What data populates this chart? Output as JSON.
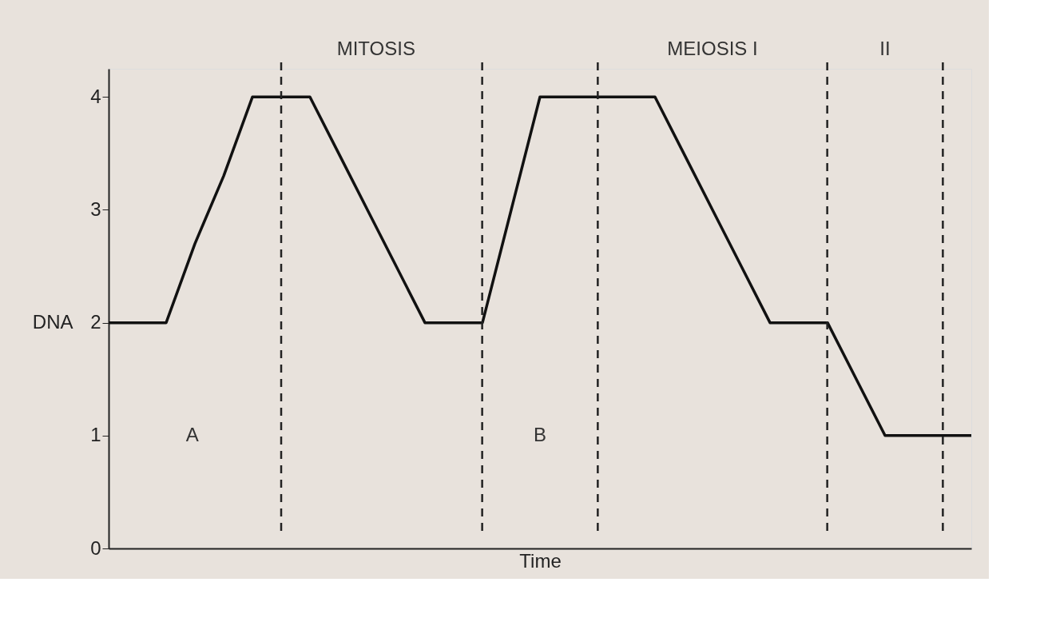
{
  "chart_data": {
    "type": "line",
    "xlabel": "Time",
    "ylabel": "DNA",
    "categories": [
      null,
      null,
      null,
      null,
      null,
      null,
      null,
      null,
      null,
      null,
      null,
      null,
      null,
      null,
      null,
      null,
      null,
      null,
      null,
      null,
      null,
      null,
      null,
      null,
      null,
      null,
      null,
      null,
      null,
      null,
      null
    ],
    "series": [
      {
        "color": "#111111",
        "values": [
          2,
          2,
          2,
          2.7,
          3.3,
          4,
          4,
          4,
          3.5,
          3,
          2.5,
          2,
          2,
          2,
          3,
          4,
          4,
          4,
          4,
          4,
          3.5,
          3,
          2.5,
          2,
          2,
          2,
          1.5,
          1,
          1,
          1,
          1
        ]
      }
    ],
    "ylim": [
      0,
      4.25
    ],
    "yticks": [
      0,
      1,
      2,
      3,
      4
    ],
    "tick_labels": "y",
    "grid": "x",
    "marker": "none",
    "line_style": "solid",
    "annotations": [
      "MITOSIS",
      "MEIOSIS I",
      "II",
      "A",
      "B"
    ]
  }
}
